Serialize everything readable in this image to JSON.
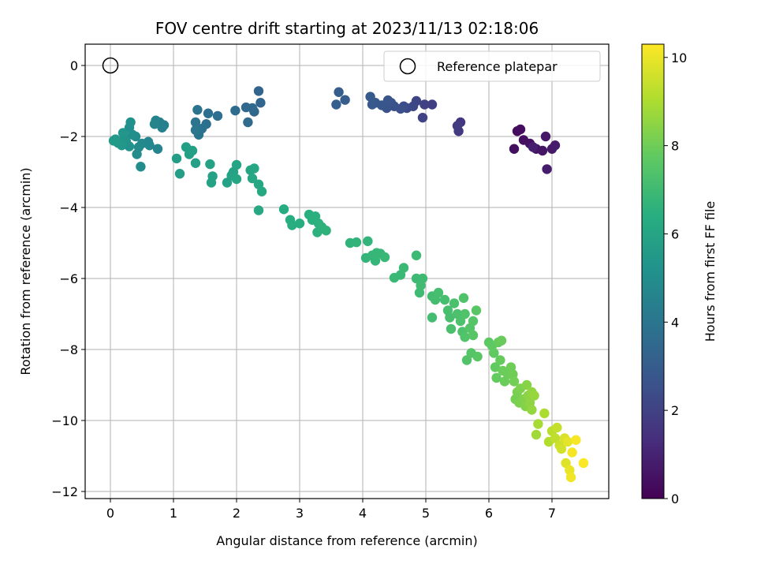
{
  "chart_data": {
    "type": "scatter",
    "title": "FOV centre drift starting at 2023/11/13 02:18:06",
    "xlabel": "Angular distance from reference (arcmin)",
    "ylabel": "Rotation from reference (arcmin)",
    "colorbar_label": "Hours from first FF file",
    "colormap": "viridis",
    "xlim": [
      -0.4,
      7.9
    ],
    "ylim": [
      -12.2,
      0.6
    ],
    "clim": [
      0,
      10.3
    ],
    "xticks": [
      0,
      1,
      2,
      3,
      4,
      5,
      6,
      7
    ],
    "yticks": [
      0,
      -2,
      -4,
      -6,
      -8,
      -10,
      -12
    ],
    "yticklabels": [
      "0",
      "−2",
      "−4",
      "−6",
      "−8",
      "−10",
      "−12"
    ],
    "cticks": [
      0,
      2,
      4,
      6,
      8,
      10
    ],
    "grid": true,
    "legend": {
      "label": "Reference platepar",
      "position": "upper right"
    },
    "reference_point": {
      "x": 0,
      "y": 0
    },
    "point_columns": [
      "x",
      "y",
      "hours"
    ],
    "points": [
      [
        6.45,
        -1.85,
        0.3
      ],
      [
        6.5,
        -1.8,
        0.35
      ],
      [
        6.4,
        -2.35,
        0.4
      ],
      [
        6.55,
        -2.1,
        0.45
      ],
      [
        6.65,
        -2.2,
        0.5
      ],
      [
        6.75,
        -2.35,
        0.55
      ],
      [
        6.85,
        -2.4,
        0.6
      ],
      [
        6.9,
        -2.0,
        0.65
      ],
      [
        7.0,
        -2.35,
        0.7
      ],
      [
        7.05,
        -2.25,
        0.75
      ],
      [
        6.92,
        -2.92,
        0.8
      ],
      [
        6.7,
        -2.3,
        0.9
      ],
      [
        5.55,
        -1.6,
        1.6
      ],
      [
        5.52,
        -1.85,
        1.7
      ],
      [
        5.5,
        -1.7,
        1.8
      ],
      [
        5.1,
        -1.1,
        1.9
      ],
      [
        4.98,
        -1.1,
        2.0
      ],
      [
        4.95,
        -1.47,
        2.05
      ],
      [
        4.85,
        -1.0,
        2.1
      ],
      [
        4.8,
        -1.15,
        2.2
      ],
      [
        4.7,
        -1.2,
        2.3
      ],
      [
        4.65,
        -1.15,
        2.4
      ],
      [
        4.6,
        -1.22,
        2.5
      ],
      [
        4.5,
        -1.15,
        2.55
      ],
      [
        4.45,
        -1.05,
        2.6
      ],
      [
        4.38,
        -1.2,
        2.65
      ],
      [
        4.4,
        -0.98,
        2.7
      ],
      [
        4.3,
        -1.12,
        2.75
      ],
      [
        4.2,
        -1.05,
        2.8
      ],
      [
        4.15,
        -1.1,
        2.85
      ],
      [
        4.12,
        -0.88,
        2.9
      ],
      [
        3.72,
        -0.97,
        3.0
      ],
      [
        3.62,
        -0.75,
        3.05
      ],
      [
        3.58,
        -1.1,
        3.1
      ],
      [
        2.35,
        -0.72,
        3.3
      ],
      [
        2.38,
        -1.05,
        3.35
      ],
      [
        2.28,
        -1.3,
        3.4
      ],
      [
        2.25,
        -1.2,
        3.45
      ],
      [
        2.15,
        -1.18,
        3.5
      ],
      [
        2.18,
        -1.6,
        3.55
      ],
      [
        1.98,
        -1.27,
        3.6
      ],
      [
        1.7,
        -1.42,
        3.7
      ],
      [
        1.55,
        -1.35,
        3.75
      ],
      [
        1.52,
        -1.65,
        3.8
      ],
      [
        1.45,
        -1.78,
        3.85
      ],
      [
        1.38,
        -1.25,
        3.9
      ],
      [
        1.4,
        -1.95,
        3.95
      ],
      [
        1.35,
        -1.6,
        4.0
      ],
      [
        1.35,
        -1.82,
        4.05
      ],
      [
        0.85,
        -1.68,
        4.4
      ],
      [
        0.82,
        -1.75,
        4.45
      ],
      [
        0.78,
        -1.6,
        4.5
      ],
      [
        0.72,
        -1.55,
        4.55
      ],
      [
        0.7,
        -1.65,
        4.6
      ],
      [
        0.75,
        -2.35,
        4.65
      ],
      [
        0.6,
        -2.15,
        4.7
      ],
      [
        0.62,
        -2.25,
        4.75
      ],
      [
        0.5,
        -2.2,
        4.8
      ],
      [
        0.45,
        -2.3,
        4.85
      ],
      [
        0.4,
        -2.0,
        4.9
      ],
      [
        0.42,
        -2.5,
        4.95
      ],
      [
        0.48,
        -2.85,
        5.0
      ],
      [
        0.35,
        -1.95,
        5.05
      ],
      [
        0.3,
        -1.75,
        5.1
      ],
      [
        0.32,
        -1.6,
        5.15
      ],
      [
        0.3,
        -2.28,
        5.2
      ],
      [
        0.25,
        -2.15,
        5.25
      ],
      [
        0.22,
        -2.05,
        5.3
      ],
      [
        0.2,
        -1.9,
        5.35
      ],
      [
        0.18,
        -2.25,
        5.4
      ],
      [
        0.12,
        -2.18,
        5.45
      ],
      [
        0.08,
        -2.08,
        5.5
      ],
      [
        0.05,
        -2.12,
        5.55
      ],
      [
        1.05,
        -2.62,
        5.7
      ],
      [
        1.1,
        -3.05,
        5.72
      ],
      [
        1.2,
        -2.3,
        5.75
      ],
      [
        1.25,
        -2.5,
        5.78
      ],
      [
        1.3,
        -2.4,
        5.8
      ],
      [
        1.35,
        -2.75,
        5.82
      ],
      [
        1.58,
        -2.78,
        5.85
      ],
      [
        1.62,
        -3.12,
        5.88
      ],
      [
        1.6,
        -3.3,
        5.9
      ],
      [
        1.85,
        -3.3,
        5.92
      ],
      [
        1.92,
        -3.1,
        5.95
      ],
      [
        1.95,
        -3.0,
        5.97
      ],
      [
        2.0,
        -2.8,
        6.0
      ],
      [
        2.0,
        -3.2,
        6.02
      ],
      [
        2.22,
        -2.95,
        6.05
      ],
      [
        2.28,
        -2.9,
        6.08
      ],
      [
        2.25,
        -3.18,
        6.1
      ],
      [
        2.35,
        -3.35,
        6.12
      ],
      [
        2.4,
        -3.55,
        6.15
      ],
      [
        2.35,
        -4.08,
        6.18
      ],
      [
        2.75,
        -4.05,
        6.3
      ],
      [
        2.85,
        -4.35,
        6.35
      ],
      [
        2.88,
        -4.5,
        6.38
      ],
      [
        3.0,
        -4.45,
        6.4
      ],
      [
        3.15,
        -4.2,
        6.45
      ],
      [
        3.2,
        -4.35,
        6.48
      ],
      [
        3.25,
        -4.25,
        6.5
      ],
      [
        3.3,
        -4.45,
        6.52
      ],
      [
        3.28,
        -4.7,
        6.55
      ],
      [
        3.35,
        -4.55,
        6.58
      ],
      [
        3.42,
        -4.65,
        6.6
      ],
      [
        3.8,
        -5.0,
        6.65
      ],
      [
        3.9,
        -4.98,
        6.68
      ],
      [
        4.08,
        -4.95,
        6.7
      ],
      [
        4.05,
        -5.42,
        6.72
      ],
      [
        4.15,
        -5.35,
        6.75
      ],
      [
        4.2,
        -5.5,
        6.78
      ],
      [
        4.22,
        -5.28,
        6.8
      ],
      [
        4.28,
        -5.3,
        6.82
      ],
      [
        4.35,
        -5.4,
        6.85
      ],
      [
        4.5,
        -5.98,
        6.88
      ],
      [
        4.6,
        -5.9,
        6.9
      ],
      [
        4.65,
        -5.7,
        6.92
      ],
      [
        4.85,
        -5.35,
        6.95
      ],
      [
        4.85,
        -6.0,
        6.97
      ],
      [
        4.9,
        -6.4,
        7.0
      ],
      [
        4.95,
        -6.0,
        7.02
      ],
      [
        4.92,
        -6.2,
        7.05
      ],
      [
        5.1,
        -6.5,
        7.08
      ],
      [
        5.1,
        -7.1,
        7.1
      ],
      [
        5.15,
        -6.6,
        7.12
      ],
      [
        5.2,
        -6.4,
        7.15
      ],
      [
        5.3,
        -6.6,
        7.18
      ],
      [
        5.35,
        -6.9,
        7.2
      ],
      [
        5.38,
        -7.1,
        7.22
      ],
      [
        5.4,
        -7.42,
        7.25
      ],
      [
        5.45,
        -6.7,
        7.28
      ],
      [
        5.5,
        -7.0,
        7.3
      ],
      [
        5.55,
        -7.2,
        7.32
      ],
      [
        5.58,
        -7.5,
        7.35
      ],
      [
        5.6,
        -6.55,
        7.38
      ],
      [
        5.62,
        -7.0,
        7.4
      ],
      [
        5.62,
        -7.65,
        7.42
      ],
      [
        5.65,
        -8.3,
        7.45
      ],
      [
        5.7,
        -7.4,
        7.48
      ],
      [
        5.72,
        -8.1,
        7.5
      ],
      [
        5.75,
        -7.2,
        7.52
      ],
      [
        5.75,
        -7.6,
        7.55
      ],
      [
        5.8,
        -6.9,
        7.58
      ],
      [
        5.82,
        -8.2,
        7.6
      ],
      [
        6.0,
        -7.8,
        7.7
      ],
      [
        6.05,
        -7.9,
        7.72
      ],
      [
        6.08,
        -8.1,
        7.75
      ],
      [
        6.1,
        -8.5,
        7.78
      ],
      [
        6.12,
        -8.8,
        7.8
      ],
      [
        6.15,
        -7.8,
        7.82
      ],
      [
        6.18,
        -8.3,
        7.85
      ],
      [
        6.2,
        -7.75,
        7.88
      ],
      [
        6.22,
        -8.6,
        7.9
      ],
      [
        6.25,
        -8.9,
        7.92
      ],
      [
        6.3,
        -8.7,
        7.95
      ],
      [
        6.35,
        -8.5,
        7.98
      ],
      [
        6.38,
        -8.7,
        8.0
      ],
      [
        6.4,
        -8.9,
        8.05
      ],
      [
        6.42,
        -9.4,
        8.1
      ],
      [
        6.45,
        -9.2,
        8.15
      ],
      [
        6.48,
        -9.5,
        8.2
      ],
      [
        6.5,
        -9.1,
        8.25
      ],
      [
        6.55,
        -9.4,
        8.3
      ],
      [
        6.58,
        -9.6,
        8.35
      ],
      [
        6.6,
        -9.0,
        8.4
      ],
      [
        6.62,
        -9.3,
        8.45
      ],
      [
        6.65,
        -9.5,
        8.5
      ],
      [
        6.68,
        -9.2,
        8.55
      ],
      [
        6.68,
        -9.7,
        8.6
      ],
      [
        6.72,
        -9.3,
        8.65
      ],
      [
        6.75,
        -10.4,
        8.8
      ],
      [
        6.78,
        -10.1,
        8.9
      ],
      [
        6.88,
        -9.8,
        9.0
      ],
      [
        6.95,
        -10.6,
        9.1
      ],
      [
        7.0,
        -10.3,
        9.2
      ],
      [
        7.05,
        -10.5,
        9.3
      ],
      [
        7.08,
        -10.2,
        9.4
      ],
      [
        7.12,
        -10.7,
        9.5
      ],
      [
        7.15,
        -10.8,
        9.6
      ],
      [
        7.2,
        -10.5,
        9.7
      ],
      [
        7.22,
        -11.2,
        9.8
      ],
      [
        7.25,
        -10.6,
        9.9
      ],
      [
        7.28,
        -11.4,
        10.0
      ],
      [
        7.3,
        -11.6,
        10.1
      ],
      [
        7.32,
        -10.9,
        10.15
      ],
      [
        7.38,
        -10.55,
        10.2
      ],
      [
        7.5,
        -11.2,
        10.25
      ]
    ]
  }
}
